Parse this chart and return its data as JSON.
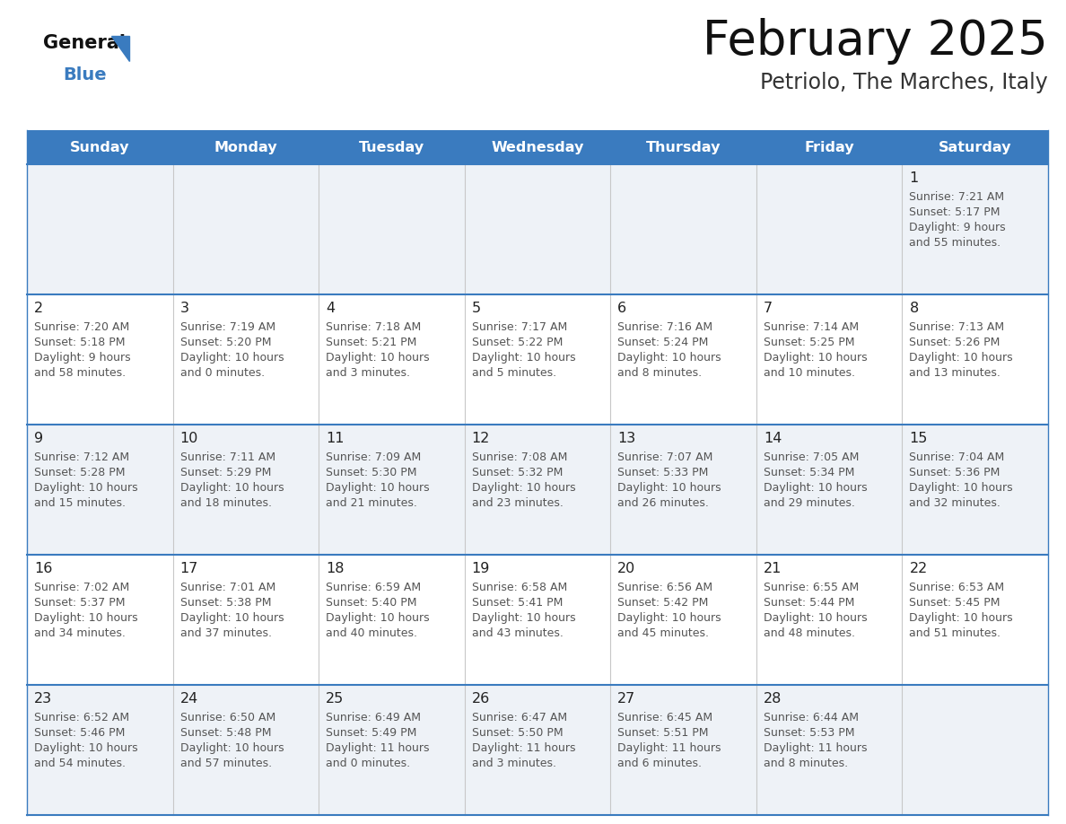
{
  "title": "February 2025",
  "subtitle": "Petriolo, The Marches, Italy",
  "days_of_week": [
    "Sunday",
    "Monday",
    "Tuesday",
    "Wednesday",
    "Thursday",
    "Friday",
    "Saturday"
  ],
  "header_bg": "#3a7bbf",
  "header_text": "#ffffff",
  "row_bg_even": "#eef2f7",
  "row_bg_odd": "#ffffff",
  "border_color": "#3a7bbf",
  "cell_sep_color": "#c8c8c8",
  "day_num_color": "#222222",
  "info_color": "#555555",
  "title_color": "#111111",
  "subtitle_color": "#333333",
  "logo_general_color": "#111111",
  "logo_blue_color": "#3a7bbf",
  "logo_triangle_color": "#3a7bbf",
  "calendar_data": [
    [
      null,
      null,
      null,
      null,
      null,
      null,
      {
        "day": "1",
        "sunrise": "7:21 AM",
        "sunset": "5:17 PM",
        "daylight_h": "9 hours",
        "daylight_m": "and 55 minutes."
      }
    ],
    [
      {
        "day": "2",
        "sunrise": "7:20 AM",
        "sunset": "5:18 PM",
        "daylight_h": "9 hours",
        "daylight_m": "and 58 minutes."
      },
      {
        "day": "3",
        "sunrise": "7:19 AM",
        "sunset": "5:20 PM",
        "daylight_h": "10 hours",
        "daylight_m": "and 0 minutes."
      },
      {
        "day": "4",
        "sunrise": "7:18 AM",
        "sunset": "5:21 PM",
        "daylight_h": "10 hours",
        "daylight_m": "and 3 minutes."
      },
      {
        "day": "5",
        "sunrise": "7:17 AM",
        "sunset": "5:22 PM",
        "daylight_h": "10 hours",
        "daylight_m": "and 5 minutes."
      },
      {
        "day": "6",
        "sunrise": "7:16 AM",
        "sunset": "5:24 PM",
        "daylight_h": "10 hours",
        "daylight_m": "and 8 minutes."
      },
      {
        "day": "7",
        "sunrise": "7:14 AM",
        "sunset": "5:25 PM",
        "daylight_h": "10 hours",
        "daylight_m": "and 10 minutes."
      },
      {
        "day": "8",
        "sunrise": "7:13 AM",
        "sunset": "5:26 PM",
        "daylight_h": "10 hours",
        "daylight_m": "and 13 minutes."
      }
    ],
    [
      {
        "day": "9",
        "sunrise": "7:12 AM",
        "sunset": "5:28 PM",
        "daylight_h": "10 hours",
        "daylight_m": "and 15 minutes."
      },
      {
        "day": "10",
        "sunrise": "7:11 AM",
        "sunset": "5:29 PM",
        "daylight_h": "10 hours",
        "daylight_m": "and 18 minutes."
      },
      {
        "day": "11",
        "sunrise": "7:09 AM",
        "sunset": "5:30 PM",
        "daylight_h": "10 hours",
        "daylight_m": "and 21 minutes."
      },
      {
        "day": "12",
        "sunrise": "7:08 AM",
        "sunset": "5:32 PM",
        "daylight_h": "10 hours",
        "daylight_m": "and 23 minutes."
      },
      {
        "day": "13",
        "sunrise": "7:07 AM",
        "sunset": "5:33 PM",
        "daylight_h": "10 hours",
        "daylight_m": "and 26 minutes."
      },
      {
        "day": "14",
        "sunrise": "7:05 AM",
        "sunset": "5:34 PM",
        "daylight_h": "10 hours",
        "daylight_m": "and 29 minutes."
      },
      {
        "day": "15",
        "sunrise": "7:04 AM",
        "sunset": "5:36 PM",
        "daylight_h": "10 hours",
        "daylight_m": "and 32 minutes."
      }
    ],
    [
      {
        "day": "16",
        "sunrise": "7:02 AM",
        "sunset": "5:37 PM",
        "daylight_h": "10 hours",
        "daylight_m": "and 34 minutes."
      },
      {
        "day": "17",
        "sunrise": "7:01 AM",
        "sunset": "5:38 PM",
        "daylight_h": "10 hours",
        "daylight_m": "and 37 minutes."
      },
      {
        "day": "18",
        "sunrise": "6:59 AM",
        "sunset": "5:40 PM",
        "daylight_h": "10 hours",
        "daylight_m": "and 40 minutes."
      },
      {
        "day": "19",
        "sunrise": "6:58 AM",
        "sunset": "5:41 PM",
        "daylight_h": "10 hours",
        "daylight_m": "and 43 minutes."
      },
      {
        "day": "20",
        "sunrise": "6:56 AM",
        "sunset": "5:42 PM",
        "daylight_h": "10 hours",
        "daylight_m": "and 45 minutes."
      },
      {
        "day": "21",
        "sunrise": "6:55 AM",
        "sunset": "5:44 PM",
        "daylight_h": "10 hours",
        "daylight_m": "and 48 minutes."
      },
      {
        "day": "22",
        "sunrise": "6:53 AM",
        "sunset": "5:45 PM",
        "daylight_h": "10 hours",
        "daylight_m": "and 51 minutes."
      }
    ],
    [
      {
        "day": "23",
        "sunrise": "6:52 AM",
        "sunset": "5:46 PM",
        "daylight_h": "10 hours",
        "daylight_m": "and 54 minutes."
      },
      {
        "day": "24",
        "sunrise": "6:50 AM",
        "sunset": "5:48 PM",
        "daylight_h": "10 hours",
        "daylight_m": "and 57 minutes."
      },
      {
        "day": "25",
        "sunrise": "6:49 AM",
        "sunset": "5:49 PM",
        "daylight_h": "11 hours",
        "daylight_m": "and 0 minutes."
      },
      {
        "day": "26",
        "sunrise": "6:47 AM",
        "sunset": "5:50 PM",
        "daylight_h": "11 hours",
        "daylight_m": "and 3 minutes."
      },
      {
        "day": "27",
        "sunrise": "6:45 AM",
        "sunset": "5:51 PM",
        "daylight_h": "11 hours",
        "daylight_m": "and 6 minutes."
      },
      {
        "day": "28",
        "sunrise": "6:44 AM",
        "sunset": "5:53 PM",
        "daylight_h": "11 hours",
        "daylight_m": "and 8 minutes."
      },
      null
    ]
  ]
}
